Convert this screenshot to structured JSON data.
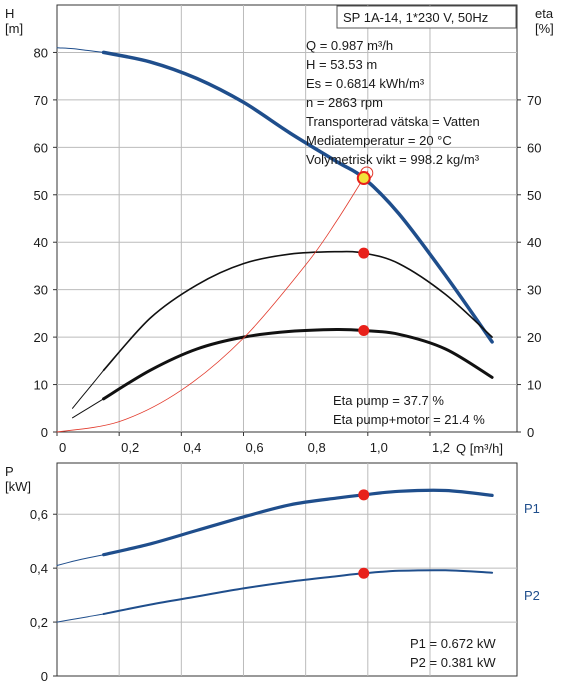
{
  "title": "SP 1A-14, 1*230 V, 50Hz",
  "info_lines": [
    "Q = 0.987 m³/h",
    "H = 53.53 m",
    "Es = 0.6814 kWh/m³",
    "n = 2863 rpm",
    "Transporterad vätska = Vatten",
    "Mediatemperatur = 20 °C",
    "Volymetrisk vikt = 998.2 kg/m³"
  ],
  "eta_notes": [
    "Eta pump = 37.7 %",
    "Eta pump+motor = 21.4 %"
  ],
  "power_notes": [
    "P1 = 0.672 kW",
    "P2 = 0.381 kW"
  ],
  "colors": {
    "head": "#1f4e8c",
    "power": "#1f4e8c",
    "eta": "#111111",
    "system": "#e23a2c",
    "marker": "#e8201a",
    "duty": "#f2e23a"
  },
  "chart_data": [
    {
      "type": "line",
      "xlabel": "Q [m³/h]",
      "ylabel": "H [m]",
      "y2label": "eta [%]",
      "x_ticks": [
        "0",
        "0,2",
        "0,4",
        "0,6",
        "0,8",
        "1,0",
        "1,2"
      ],
      "x_tick_values": [
        0,
        0.2,
        0.4,
        0.6,
        0.8,
        1.0,
        1.2
      ],
      "y_ticks": [
        "0",
        "10",
        "20",
        "30",
        "40",
        "50",
        "60",
        "70",
        "80"
      ],
      "y_tick_values": [
        0,
        10,
        20,
        30,
        40,
        50,
        60,
        70,
        80
      ],
      "y2_ticks": [
        "0",
        "10",
        "20",
        "30",
        "40",
        "50",
        "60",
        "70"
      ],
      "y2_tick_values": [
        0,
        10,
        20,
        30,
        40,
        50,
        60,
        70
      ],
      "xlim": [
        0,
        1.48
      ],
      "ylim": [
        0,
        90
      ],
      "grid": true,
      "series": [
        {
          "role": "head-extension",
          "x": [
            0,
            0.05,
            0.1,
            0.15
          ],
          "y": [
            81,
            80.8,
            80.4,
            80
          ]
        },
        {
          "role": "head",
          "x": [
            0.15,
            0.3,
            0.45,
            0.6,
            0.75,
            0.9,
            0.987,
            1.1,
            1.25,
            1.4
          ],
          "y": [
            80,
            78,
            74.5,
            69.5,
            63,
            57,
            53.53,
            46,
            33,
            19
          ]
        },
        {
          "role": "eta-pump-extension",
          "x": [
            0.05,
            0.1,
            0.15
          ],
          "y": [
            5,
            9,
            13
          ]
        },
        {
          "role": "eta-pump",
          "x": [
            0.15,
            0.3,
            0.45,
            0.6,
            0.75,
            0.9,
            0.987,
            1.1,
            1.25,
            1.4
          ],
          "y": [
            13,
            24,
            31,
            35.5,
            37.5,
            38,
            37.7,
            35.5,
            29,
            20
          ]
        },
        {
          "role": "eta-total-extension",
          "x": [
            0.05,
            0.1,
            0.15
          ],
          "y": [
            3,
            5,
            7
          ]
        },
        {
          "role": "eta-total",
          "x": [
            0.15,
            0.3,
            0.45,
            0.6,
            0.75,
            0.9,
            0.987,
            1.1,
            1.25,
            1.4
          ],
          "y": [
            7,
            13,
            17.5,
            20,
            21.2,
            21.6,
            21.4,
            20.6,
            17.5,
            11.5
          ]
        },
        {
          "role": "system-curve",
          "x": [
            0,
            0.2,
            0.4,
            0.6,
            0.8,
            0.9,
            1.0
          ],
          "y": [
            0,
            2.2,
            8.8,
            19.8,
            35.2,
            44.5,
            55
          ]
        }
      ],
      "points": [
        {
          "role": "duty",
          "x": 0.987,
          "y": 53.53
        },
        {
          "role": "eta-pump",
          "x": 0.987,
          "y": 37.7
        },
        {
          "role": "eta-total",
          "x": 0.987,
          "y": 21.4
        }
      ]
    },
    {
      "type": "line",
      "ylabel": "P [kW]",
      "y_ticks": [
        "0",
        "0,2",
        "0,4",
        "0,6"
      ],
      "y_tick_values": [
        0,
        0.2,
        0.4,
        0.6
      ],
      "xlim": [
        0,
        1.48
      ],
      "ylim": [
        0,
        0.79
      ],
      "grid": true,
      "series": [
        {
          "name": "P1",
          "role": "p1-extension",
          "x": [
            0,
            0.05,
            0.1,
            0.15
          ],
          "y": [
            0.41,
            0.425,
            0.438,
            0.45
          ]
        },
        {
          "name": "P1",
          "role": "p1",
          "x": [
            0.15,
            0.3,
            0.45,
            0.6,
            0.75,
            0.9,
            0.987,
            1.1,
            1.25,
            1.4
          ],
          "y": [
            0.45,
            0.49,
            0.54,
            0.59,
            0.635,
            0.66,
            0.672,
            0.685,
            0.688,
            0.67
          ]
        },
        {
          "name": "P2",
          "role": "p2-extension",
          "x": [
            0,
            0.05,
            0.1,
            0.15
          ],
          "y": [
            0.2,
            0.21,
            0.22,
            0.23
          ]
        },
        {
          "name": "P2",
          "role": "p2",
          "x": [
            0.15,
            0.3,
            0.45,
            0.6,
            0.75,
            0.9,
            0.987,
            1.1,
            1.25,
            1.4
          ],
          "y": [
            0.23,
            0.265,
            0.295,
            0.325,
            0.35,
            0.37,
            0.381,
            0.39,
            0.392,
            0.383
          ]
        }
      ],
      "points": [
        {
          "role": "p1",
          "x": 0.987,
          "y": 0.672
        },
        {
          "role": "p2",
          "x": 0.987,
          "y": 0.381
        }
      ],
      "legend": [
        "P1",
        "P2"
      ]
    }
  ]
}
